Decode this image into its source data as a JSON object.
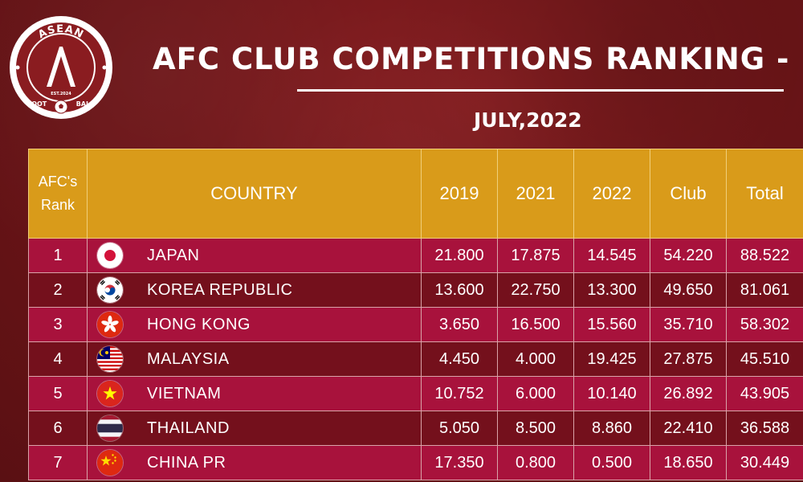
{
  "logo": {
    "top_text": "ASEAN",
    "est_text": "EST.2024",
    "bottom_left": "FOOT",
    "bottom_right": "BALL",
    "icon": "football-icon"
  },
  "header": {
    "title": "AFC CLUB COMPETITIONS RANKING - E",
    "subtitle": "JULY,2022"
  },
  "colors": {
    "background": "#6e1518",
    "header_gold": "#d99b1a",
    "row_odd": "#a8123c",
    "row_even": "#74101c"
  },
  "table": {
    "headers": {
      "rank_line1": "AFC's",
      "rank_line2": "Rank",
      "country": "COUNTRY",
      "y2019": "2019",
      "y2021": "2021",
      "y2022": "2022",
      "club": "Club",
      "total": "Total"
    },
    "rows": [
      {
        "rank": "1",
        "country": "JAPAN",
        "flag": "japan-flag-icon",
        "y2019": "21.800",
        "y2021": "17.875",
        "y2022": "14.545",
        "club": "54.220",
        "total": "88.522"
      },
      {
        "rank": "2",
        "country": "KOREA REPUBLIC",
        "flag": "korea-flag-icon",
        "y2019": "13.600",
        "y2021": "22.750",
        "y2022": "13.300",
        "club": "49.650",
        "total": "81.061"
      },
      {
        "rank": "3",
        "country": "HONG KONG",
        "flag": "hong-kong-flag-icon",
        "y2019": "3.650",
        "y2021": "16.500",
        "y2022": "15.560",
        "club": "35.710",
        "total": "58.302"
      },
      {
        "rank": "4",
        "country": "MALAYSIA",
        "flag": "malaysia-flag-icon",
        "y2019": "4.450",
        "y2021": "4.000",
        "y2022": "19.425",
        "club": "27.875",
        "total": "45.510"
      },
      {
        "rank": "5",
        "country": "VIETNAM",
        "flag": "vietnam-flag-icon",
        "y2019": "10.752",
        "y2021": "6.000",
        "y2022": "10.140",
        "club": "26.892",
        "total": "43.905"
      },
      {
        "rank": "6",
        "country": "THAILAND",
        "flag": "thailand-flag-icon",
        "y2019": "5.050",
        "y2021": "8.500",
        "y2022": "8.860",
        "club": "22.410",
        "total": "36.588"
      },
      {
        "rank": "7",
        "country": "CHINA PR",
        "flag": "china-flag-icon",
        "y2019": "17.350",
        "y2021": "0.800",
        "y2022": "0.500",
        "club": "18.650",
        "total": "30.449"
      }
    ]
  }
}
